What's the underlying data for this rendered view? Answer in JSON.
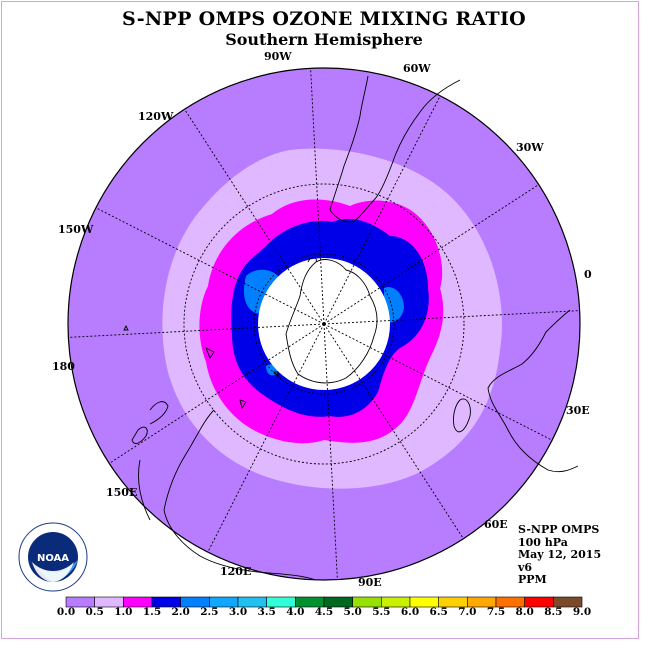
{
  "header": {
    "title": "S-NPP OMPS OZONE MIXING RATIO",
    "subtitle": "Southern Hemisphere"
  },
  "longitude_labels": [
    {
      "id": "lon-90w",
      "text": "90W"
    },
    {
      "id": "lon-60w",
      "text": "60W"
    },
    {
      "id": "lon-30w",
      "text": "30W"
    },
    {
      "id": "lon-0",
      "text": "0"
    },
    {
      "id": "lon-30e",
      "text": "30E"
    },
    {
      "id": "lon-60e",
      "text": "60E"
    },
    {
      "id": "lon-90e",
      "text": "90E"
    },
    {
      "id": "lon-120e",
      "text": "120E"
    },
    {
      "id": "lon-150e",
      "text": "150E"
    },
    {
      "id": "lon-180",
      "text": "180"
    },
    {
      "id": "lon-150w",
      "text": "150W"
    },
    {
      "id": "lon-120w",
      "text": "120W"
    }
  ],
  "info": {
    "instrument": "S-NPP OMPS",
    "level": "100 hPa",
    "date": "May 12, 2015",
    "version": "v6",
    "units": "PPM"
  },
  "logo": {
    "text": "NOAA",
    "ring_text": "NATIONAL OCEANIC AND ATMOSPHERIC ADMINISTRATION · U.S. DEPARTMENT OF COMMERCE"
  },
  "colorbar": {
    "labels": [
      "0.0",
      "0.5",
      "1.0",
      "1.5",
      "2.0",
      "2.5",
      "3.0",
      "3.5",
      "4.0",
      "4.5",
      "5.0",
      "5.5",
      "6.0",
      "6.5",
      "7.0",
      "7.5",
      "8.0",
      "8.5",
      "9.0"
    ],
    "colors": [
      "#b87cff",
      "#e0b8ff",
      "#ff00ff",
      "#0000e8",
      "#0080ff",
      "#10a8ff",
      "#20c0f0",
      "#30ffd8",
      "#009030",
      "#006820",
      "#98e000",
      "#c8f000",
      "#ffff00",
      "#ffd000",
      "#ffa800",
      "#ff7000",
      "#ff0000",
      "#7a4a2a"
    ]
  },
  "map": {
    "projection": "polar stereographic",
    "hemisphere": "south",
    "field": "ozone mixing ratio",
    "colors": {
      "background": "#b87cff",
      "band_0_5_1_0": "#e0b8ff",
      "band_1_0_1_5": "#ff00ff",
      "band_1_5_2_0": "#0000e8",
      "band_2_0_2_5": "#0080ff",
      "missing": "#ffffff"
    }
  }
}
